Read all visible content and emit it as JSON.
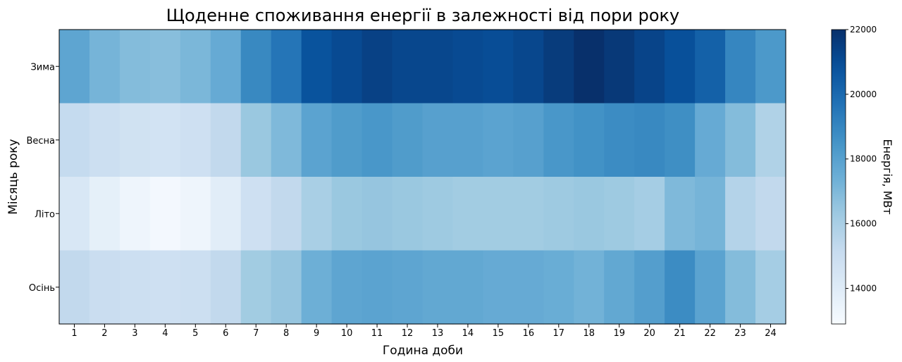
{
  "chart_data": {
    "type": "heatmap",
    "title": "Щоденне споживання енергії в залежності від пори року",
    "xlabel": "Година доби",
    "ylabel": "Місяць року",
    "colorbar_label": "Енергія, МВт",
    "x": [
      "1",
      "2",
      "3",
      "4",
      "5",
      "6",
      "7",
      "8",
      "9",
      "10",
      "11",
      "12",
      "13",
      "14",
      "15",
      "16",
      "17",
      "18",
      "19",
      "20",
      "21",
      "22",
      "23",
      "24"
    ],
    "y": [
      "Зима",
      "Весна",
      "Літо",
      "Осінь"
    ],
    "values": [
      [
        17800,
        17200,
        16900,
        16800,
        17100,
        17600,
        18900,
        19600,
        20800,
        21100,
        21400,
        21200,
        21200,
        21100,
        21000,
        21200,
        21600,
        22000,
        21700,
        21300,
        20900,
        20300,
        19000,
        18300
      ],
      [
        15200,
        14900,
        14700,
        14600,
        14800,
        15300,
        16400,
        17000,
        17900,
        18200,
        18400,
        18200,
        18000,
        18000,
        17900,
        18000,
        18400,
        18600,
        18800,
        18900,
        18700,
        17600,
        16900,
        15800
      ],
      [
        14300,
        13700,
        13300,
        13100,
        13300,
        13900,
        14800,
        15300,
        16000,
        16400,
        16500,
        16400,
        16300,
        16200,
        16200,
        16200,
        16300,
        16400,
        16300,
        16100,
        17000,
        17200,
        15700,
        15300
      ],
      [
        15300,
        15000,
        14900,
        14800,
        14900,
        15300,
        16200,
        16500,
        17400,
        17800,
        17900,
        17800,
        17700,
        17700,
        17600,
        17600,
        17500,
        17300,
        17700,
        18100,
        18800,
        17900,
        16900,
        16100
      ]
    ],
    "colorbar_ticks": [
      14000,
      16000,
      18000,
      20000,
      22000
    ],
    "color_range": [
      12900,
      22000
    ],
    "colormap": "Blues",
    "colors": {
      "low": "#f7fbff",
      "high": "#08306b"
    }
  }
}
